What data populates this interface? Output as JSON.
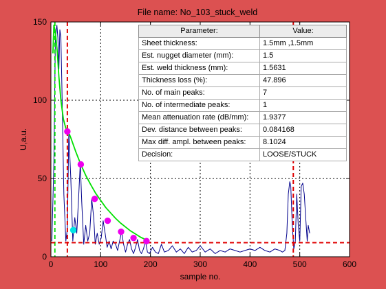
{
  "chart_data": {
    "type": "line",
    "title": "File name: No_103_stuck_weld",
    "xlabel": "sample no.",
    "ylabel": "U,a.u.",
    "xlim": [
      0,
      600
    ],
    "ylim": [
      0,
      150
    ],
    "x_ticks": [
      "0",
      "100",
      "200",
      "300",
      "400",
      "500",
      "600"
    ],
    "y_ticks": [
      "0",
      "50",
      "100",
      "150"
    ],
    "grid": true,
    "series": [
      {
        "color": "#00008b",
        "x": [
          2,
          6,
          9,
          12,
          14,
          16,
          18,
          20,
          22,
          26,
          30,
          33,
          36,
          40,
          44,
          48,
          52,
          56,
          59,
          62,
          66,
          70,
          74,
          78,
          82,
          86,
          89,
          93,
          97,
          101,
          105,
          109,
          113,
          117,
          121,
          125,
          130,
          134,
          138,
          142,
          146,
          150,
          154,
          158,
          162,
          166,
          170,
          174,
          178,
          182,
          186,
          190,
          194,
          198,
          204,
          210,
          216,
          222,
          228,
          236,
          244,
          252,
          260,
          268,
          276,
          284,
          292,
          300,
          310,
          320,
          330,
          340,
          350,
          360,
          370,
          380,
          390,
          400,
          410,
          420,
          430,
          440,
          450,
          460,
          465,
          470,
          474,
          477,
          480,
          482,
          485,
          488,
          491,
          494,
          497,
          500,
          503,
          506,
          509,
          512,
          515,
          517,
          520
        ],
        "y": [
          10,
          60,
          140,
          148,
          140,
          120,
          145,
          140,
          110,
          40,
          10,
          18,
          80,
          50,
          10,
          25,
          15,
          40,
          60,
          35,
          8,
          20,
          10,
          15,
          37,
          25,
          8,
          15,
          8,
          12,
          23,
          15,
          6,
          10,
          5,
          10,
          8,
          4,
          10,
          16,
          8,
          3,
          8,
          11,
          5,
          2,
          6,
          11,
          4,
          2,
          5,
          10,
          3,
          2,
          6,
          3,
          2,
          8,
          3,
          4,
          7,
          3,
          5,
          2,
          6,
          3,
          4,
          7,
          3,
          5,
          2,
          4,
          3,
          5,
          4,
          3,
          4,
          5,
          4,
          6,
          4,
          3,
          5,
          4,
          3,
          4,
          15,
          40,
          48,
          45,
          20,
          5,
          10,
          40,
          20,
          10,
          45,
          47,
          40,
          25,
          10,
          20,
          15
        ]
      },
      {
        "color": "#00e000",
        "x": [
          4,
          6,
          8,
          10,
          13,
          16,
          20,
          25,
          30,
          35,
          40,
          50,
          60,
          70,
          80,
          90,
          100,
          110,
          120,
          130,
          140,
          150,
          160,
          170,
          180,
          190,
          195
        ],
        "y": [
          130,
          148,
          145,
          140,
          130,
          115,
          100,
          88,
          82,
          80,
          76,
          67,
          59,
          52,
          46,
          40.5,
          36,
          31.5,
          28,
          24.5,
          21.5,
          19,
          16.5,
          14.5,
          12.5,
          11,
          10
        ]
      }
    ],
    "markers_magenta": {
      "x": [
        33,
        60,
        88,
        114,
        141,
        166,
        192
      ],
      "y": [
        80,
        59,
        37,
        23,
        16,
        12,
        10
      ]
    },
    "marker_cyan": {
      "x": 45,
      "y": 17
    },
    "vlines_green_dashed": [
      8
    ],
    "vlines_red_dashed": [
      33,
      487
    ],
    "hline_red_dashed": 9
  },
  "parameters": {
    "header": {
      "parameter": "Parameter:",
      "value": "Value:"
    },
    "rows": [
      {
        "label": "Sheet thickness:",
        "value": "1.5mm ,1.5mm"
      },
      {
        "label": "Est. nugget diameter (mm):",
        "value": "1.5"
      },
      {
        "label": "Est. weld thickness (mm):",
        "value": "1.5631"
      },
      {
        "label": "Thickness loss (%):",
        "value": "47.896"
      },
      {
        "label": "No. of main peaks:",
        "value": "7"
      },
      {
        "label": "No. of intermediate peaks:",
        "value": "1"
      },
      {
        "label": "Mean attenuation rate (dB/mm):",
        "value": "1.9377"
      },
      {
        "label": "Dev. distance between peaks:",
        "value": "0.084168"
      },
      {
        "label": "Max diff. ampl. between peaks:",
        "value": "8.1024"
      },
      {
        "label": "Decision:",
        "value": "LOOSE/STUCK"
      }
    ]
  }
}
